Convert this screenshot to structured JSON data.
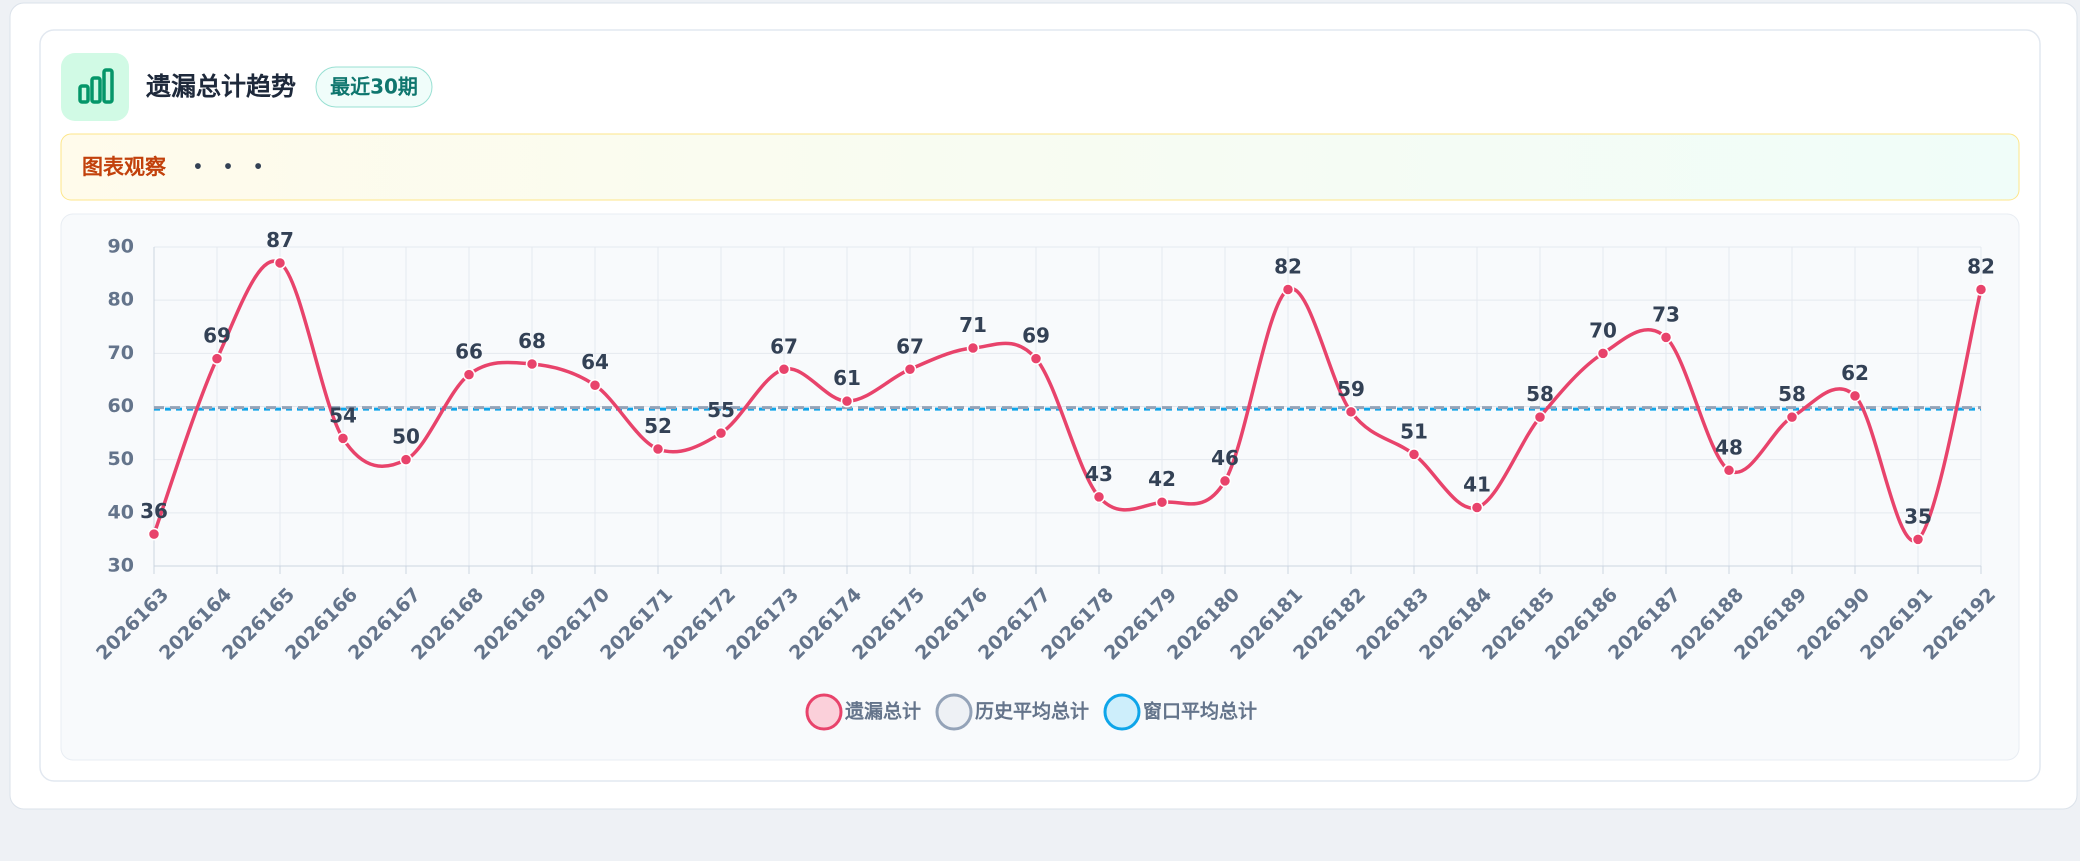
{
  "header": {
    "title": "遗漏总计趋势",
    "badge": "最近30期"
  },
  "observation": {
    "label": "图表观察",
    "text": "• • •"
  },
  "chart_data": {
    "type": "line",
    "categories": [
      "2026163",
      "2026164",
      "2026165",
      "2026166",
      "2026167",
      "2026168",
      "2026169",
      "2026170",
      "2026171",
      "2026172",
      "2026173",
      "2026174",
      "2026175",
      "2026176",
      "2026177",
      "2026178",
      "2026179",
      "2026180",
      "2026181",
      "2026182",
      "2026183",
      "2026184",
      "2026185",
      "2026186",
      "2026187",
      "2026188",
      "2026189",
      "2026190",
      "2026191",
      "2026192"
    ],
    "series": [
      {
        "name": "遗漏总计",
        "color": "#e8436b",
        "values": [
          36,
          69,
          87,
          54,
          50,
          66,
          68,
          64,
          52,
          55,
          67,
          61,
          67,
          71,
          69,
          43,
          42,
          46,
          82,
          59,
          51,
          41,
          58,
          70,
          73,
          48,
          58,
          62,
          35,
          82
        ]
      },
      {
        "name": "历史平均总计",
        "color": "#94a3b8",
        "values": [
          59.8,
          59.8,
          59.8,
          59.8,
          59.8,
          59.8,
          59.8,
          59.8,
          59.8,
          59.8,
          59.8,
          59.8,
          59.8,
          59.8,
          59.8,
          59.8,
          59.8,
          59.8,
          59.8,
          59.8,
          59.8,
          59.8,
          59.8,
          59.8,
          59.8,
          59.8,
          59.8,
          59.8,
          59.8,
          59.8
        ]
      },
      {
        "name": "窗口平均总计",
        "color": "#0ea5e9",
        "values": [
          59.5,
          59.5,
          59.5,
          59.5,
          59.5,
          59.5,
          59.5,
          59.5,
          59.5,
          59.5,
          59.5,
          59.5,
          59.5,
          59.5,
          59.5,
          59.5,
          59.5,
          59.5,
          59.5,
          59.5,
          59.5,
          59.5,
          59.5,
          59.5,
          59.5,
          59.5,
          59.5,
          59.5,
          59.5,
          59.5
        ]
      }
    ],
    "ylim": [
      30,
      90
    ],
    "yticks": [
      30,
      40,
      50,
      60,
      70,
      80,
      90
    ],
    "grid": true
  }
}
